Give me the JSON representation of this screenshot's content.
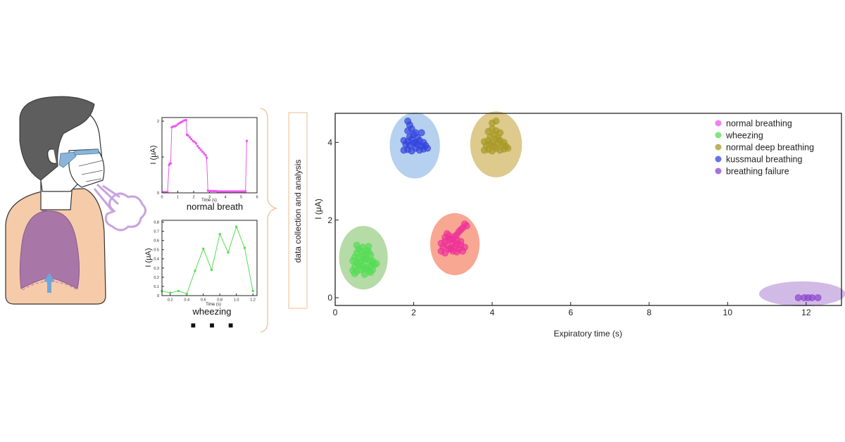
{
  "figure_name": "breath-sensor-analysis",
  "illustration": {
    "name": "person-wearing-mask-breathing"
  },
  "stage_label": "data collection and analysis",
  "more_marker": "■ ■ ■",
  "colors": {
    "normal": "#ee55ee",
    "wheezing": "#55dd55",
    "deep": "#a89a26",
    "kussmaul": "#3344dd",
    "failure": "#8a44cc",
    "brace": "#f1c8a0",
    "axis": "#222222"
  },
  "chart_data": [
    {
      "id": "normal-breath",
      "type": "line",
      "title": "normal breath",
      "xlabel": "Time (s)",
      "ylabel": "I (μA)",
      "xlim": [
        0,
        6
      ],
      "ylim": [
        0,
        2.1
      ],
      "xticks": [
        "0",
        "1",
        "2",
        "3",
        "4",
        "5",
        "6"
      ],
      "xtick_values": [
        0,
        1,
        2,
        3,
        4,
        5,
        6
      ],
      "yticks": [
        "0",
        "1",
        "2"
      ],
      "ytick_values": [
        0,
        1,
        2
      ],
      "series": [
        {
          "name": "normal breath",
          "color": "#ee55ee",
          "x": [
            0.05,
            0.15,
            0.25,
            0.35,
            0.45,
            0.5,
            0.55,
            0.62,
            0.72,
            0.82,
            0.92,
            1.02,
            1.12,
            1.22,
            1.32,
            1.42,
            1.52,
            1.58,
            1.65,
            1.75,
            1.85,
            1.95,
            2.05,
            2.15,
            2.25,
            2.35,
            2.45,
            2.55,
            2.65,
            2.75,
            2.82,
            2.9,
            3.0,
            3.1,
            3.2,
            3.3,
            3.4,
            3.5,
            3.6,
            3.7,
            3.8,
            3.9,
            4.0,
            4.1,
            4.2,
            4.3,
            4.4,
            4.5,
            4.6,
            4.7,
            4.8,
            4.9,
            5.0,
            5.1,
            5.2,
            5.27,
            5.35
          ],
          "values": [
            0.02,
            0.02,
            0.02,
            0.02,
            0.78,
            0.82,
            0.82,
            1.83,
            1.85,
            1.86,
            1.88,
            1.92,
            1.95,
            1.97,
            2.0,
            2.02,
            2.03,
            1.62,
            1.6,
            1.55,
            1.5,
            1.45,
            1.42,
            1.38,
            1.3,
            1.25,
            1.2,
            1.15,
            1.1,
            1.05,
            0.98,
            0.06,
            0.05,
            0.05,
            0.05,
            0.05,
            0.05,
            0.04,
            0.04,
            0.04,
            0.04,
            0.04,
            0.04,
            0.04,
            0.04,
            0.04,
            0.04,
            0.04,
            0.04,
            0.04,
            0.04,
            0.04,
            0.04,
            0.04,
            0.04,
            0.04,
            1.45
          ]
        }
      ]
    },
    {
      "id": "wheezing",
      "type": "line",
      "title": "wheezing",
      "xlabel": "Time (s)",
      "ylabel": "I (μA)",
      "xlim": [
        0.1,
        1.25
      ],
      "ylim": [
        0,
        0.82
      ],
      "xticks": [
        "0.2",
        "0.4",
        "0.6",
        "0.8",
        "1.0",
        "1.2"
      ],
      "xtick_values": [
        0.2,
        0.4,
        0.6,
        0.8,
        1.0,
        1.2
      ],
      "yticks": [
        "0",
        "0.1",
        "0.2",
        "0.3",
        "0.4",
        "0.5",
        "0.6",
        "0.7",
        "0.8"
      ],
      "ytick_values": [
        0,
        0.1,
        0.2,
        0.3,
        0.4,
        0.5,
        0.6,
        0.7,
        0.8
      ],
      "series": [
        {
          "name": "wheezing",
          "color": "#55dd55",
          "x": [
            0.1,
            0.2,
            0.3,
            0.4,
            0.5,
            0.6,
            0.7,
            0.8,
            0.9,
            1.0,
            1.1,
            1.2
          ],
          "values": [
            0.05,
            0.03,
            0.05,
            0.02,
            0.27,
            0.51,
            0.28,
            0.67,
            0.47,
            0.75,
            0.52,
            0.05
          ]
        }
      ]
    },
    {
      "id": "breathing-patterns",
      "type": "scatter",
      "title": "",
      "xlabel": "Expiratory time (s)",
      "ylabel": "I (μA)",
      "xlim": [
        0,
        12.9
      ],
      "ylim": [
        -0.2,
        4.75
      ],
      "xticks": [
        "0",
        "2",
        "4",
        "6",
        "8",
        "10",
        "12"
      ],
      "xtick_values": [
        0,
        2,
        4,
        6,
        8,
        10,
        12
      ],
      "yticks": [
        "0",
        "2",
        "4"
      ],
      "ytick_values": [
        0,
        2,
        4
      ],
      "legend_position": "top-right",
      "series": [
        {
          "name": "normal breathing",
          "color": "#ee3399",
          "ellipse_color": "#f58a6e",
          "ellipse_center": [
            3.05,
            1.38
          ],
          "ellipse_radius": [
            0.63,
            0.8
          ],
          "x": [
            2.7,
            2.8,
            2.9,
            3.0,
            3.1,
            2.75,
            2.85,
            2.95,
            3.05,
            3.15,
            3.25,
            2.7,
            2.8,
            2.9,
            3.0,
            3.1,
            3.2,
            3.3,
            2.8,
            2.9,
            3.0,
            3.1,
            3.2,
            2.85,
            2.95,
            3.05,
            3.15,
            3.25,
            3.35,
            2.95,
            3.1,
            3.2,
            3.3
          ],
          "values": [
            1.2,
            1.15,
            1.25,
            1.2,
            1.18,
            1.3,
            1.35,
            1.28,
            1.32,
            1.25,
            1.2,
            1.4,
            1.45,
            1.5,
            1.42,
            1.38,
            1.35,
            1.3,
            1.55,
            1.6,
            1.5,
            1.48,
            1.45,
            1.65,
            1.52,
            1.58,
            1.7,
            1.8,
            1.85,
            1.25,
            1.62,
            1.75,
            1.9
          ]
        },
        {
          "name": "wheezing",
          "color": "#55dd55",
          "ellipse_color": "#9ccf8a",
          "ellipse_center": [
            0.72,
            1.03
          ],
          "ellipse_radius": [
            0.62,
            0.82
          ],
          "x": [
            0.45,
            0.55,
            0.65,
            0.75,
            0.85,
            0.95,
            0.5,
            0.6,
            0.7,
            0.8,
            0.9,
            1.0,
            0.45,
            0.55,
            0.65,
            0.75,
            0.85,
            0.95,
            1.05,
            0.5,
            0.6,
            0.7,
            0.8,
            0.9,
            0.55,
            0.65,
            0.75,
            0.85,
            0.6,
            0.7,
            0.8,
            0.9,
            0.5,
            0.75,
            0.95,
            0.55,
            0.85
          ],
          "values": [
            0.7,
            0.68,
            0.72,
            0.75,
            0.7,
            0.72,
            0.8,
            0.85,
            0.82,
            0.78,
            0.8,
            0.85,
            0.95,
            0.9,
            0.92,
            0.98,
            0.95,
            0.9,
            0.88,
            1.05,
            1.02,
            1.08,
            1.0,
            1.1,
            1.15,
            1.2,
            1.12,
            1.18,
            1.25,
            1.3,
            1.22,
            0.65,
            0.62,
            0.6,
            0.95,
            1.35,
            1.32
          ]
        },
        {
          "name": "normal  deep breathing",
          "color": "#a89a26",
          "ellipse_color": "#d1b865",
          "ellipse_center": [
            4.1,
            3.95
          ],
          "ellipse_radius": [
            0.66,
            0.85
          ],
          "x": [
            3.8,
            3.9,
            4.0,
            4.1,
            4.2,
            4.3,
            4.4,
            3.85,
            3.95,
            4.05,
            4.15,
            4.25,
            4.35,
            3.8,
            3.9,
            4.0,
            4.1,
            4.2,
            4.3,
            3.95,
            4.05,
            4.15,
            3.9,
            4.0,
            4.1,
            4.2,
            4.0,
            4.1
          ],
          "values": [
            3.8,
            3.82,
            3.78,
            3.85,
            3.8,
            3.83,
            3.85,
            3.92,
            3.95,
            3.9,
            3.98,
            3.95,
            3.9,
            4.02,
            4.05,
            4.0,
            4.08,
            4.05,
            4.0,
            4.15,
            4.2,
            4.12,
            4.28,
            4.35,
            4.3,
            4.25,
            4.5,
            4.55
          ]
        },
        {
          "name": " kussmaul breathing",
          "color": "#3344dd",
          "ellipse_color": "#9cc2ea",
          "ellipse_center": [
            2.03,
            3.92
          ],
          "ellipse_radius": [
            0.64,
            0.85
          ],
          "x": [
            1.75,
            1.85,
            1.95,
            2.05,
            2.15,
            2.25,
            2.35,
            1.8,
            1.9,
            2.0,
            2.1,
            2.2,
            2.3,
            1.75,
            1.85,
            1.95,
            2.05,
            2.15,
            2.25,
            1.9,
            2.0,
            2.1,
            1.85,
            1.95,
            2.05,
            1.9,
            1.85,
            2.2
          ],
          "values": [
            3.8,
            3.82,
            3.78,
            3.85,
            3.8,
            3.83,
            3.85,
            3.95,
            3.92,
            3.98,
            3.95,
            3.9,
            3.92,
            4.05,
            4.02,
            4.08,
            4.0,
            4.05,
            4.0,
            4.15,
            4.2,
            4.12,
            4.3,
            4.35,
            4.25,
            4.45,
            4.55,
            4.25
          ]
        },
        {
          "name": "breathing failure",
          "color": "#8a44cc",
          "ellipse_color": "#c3a3dd",
          "ellipse_center": [
            11.9,
            0.1
          ],
          "ellipse_radius": [
            1.1,
            0.32
          ],
          "x": [
            11.8,
            11.95,
            12.05,
            12.15,
            12.3
          ],
          "values": [
            0.0,
            0.0,
            0.0,
            0.0,
            0.0
          ]
        }
      ]
    }
  ]
}
